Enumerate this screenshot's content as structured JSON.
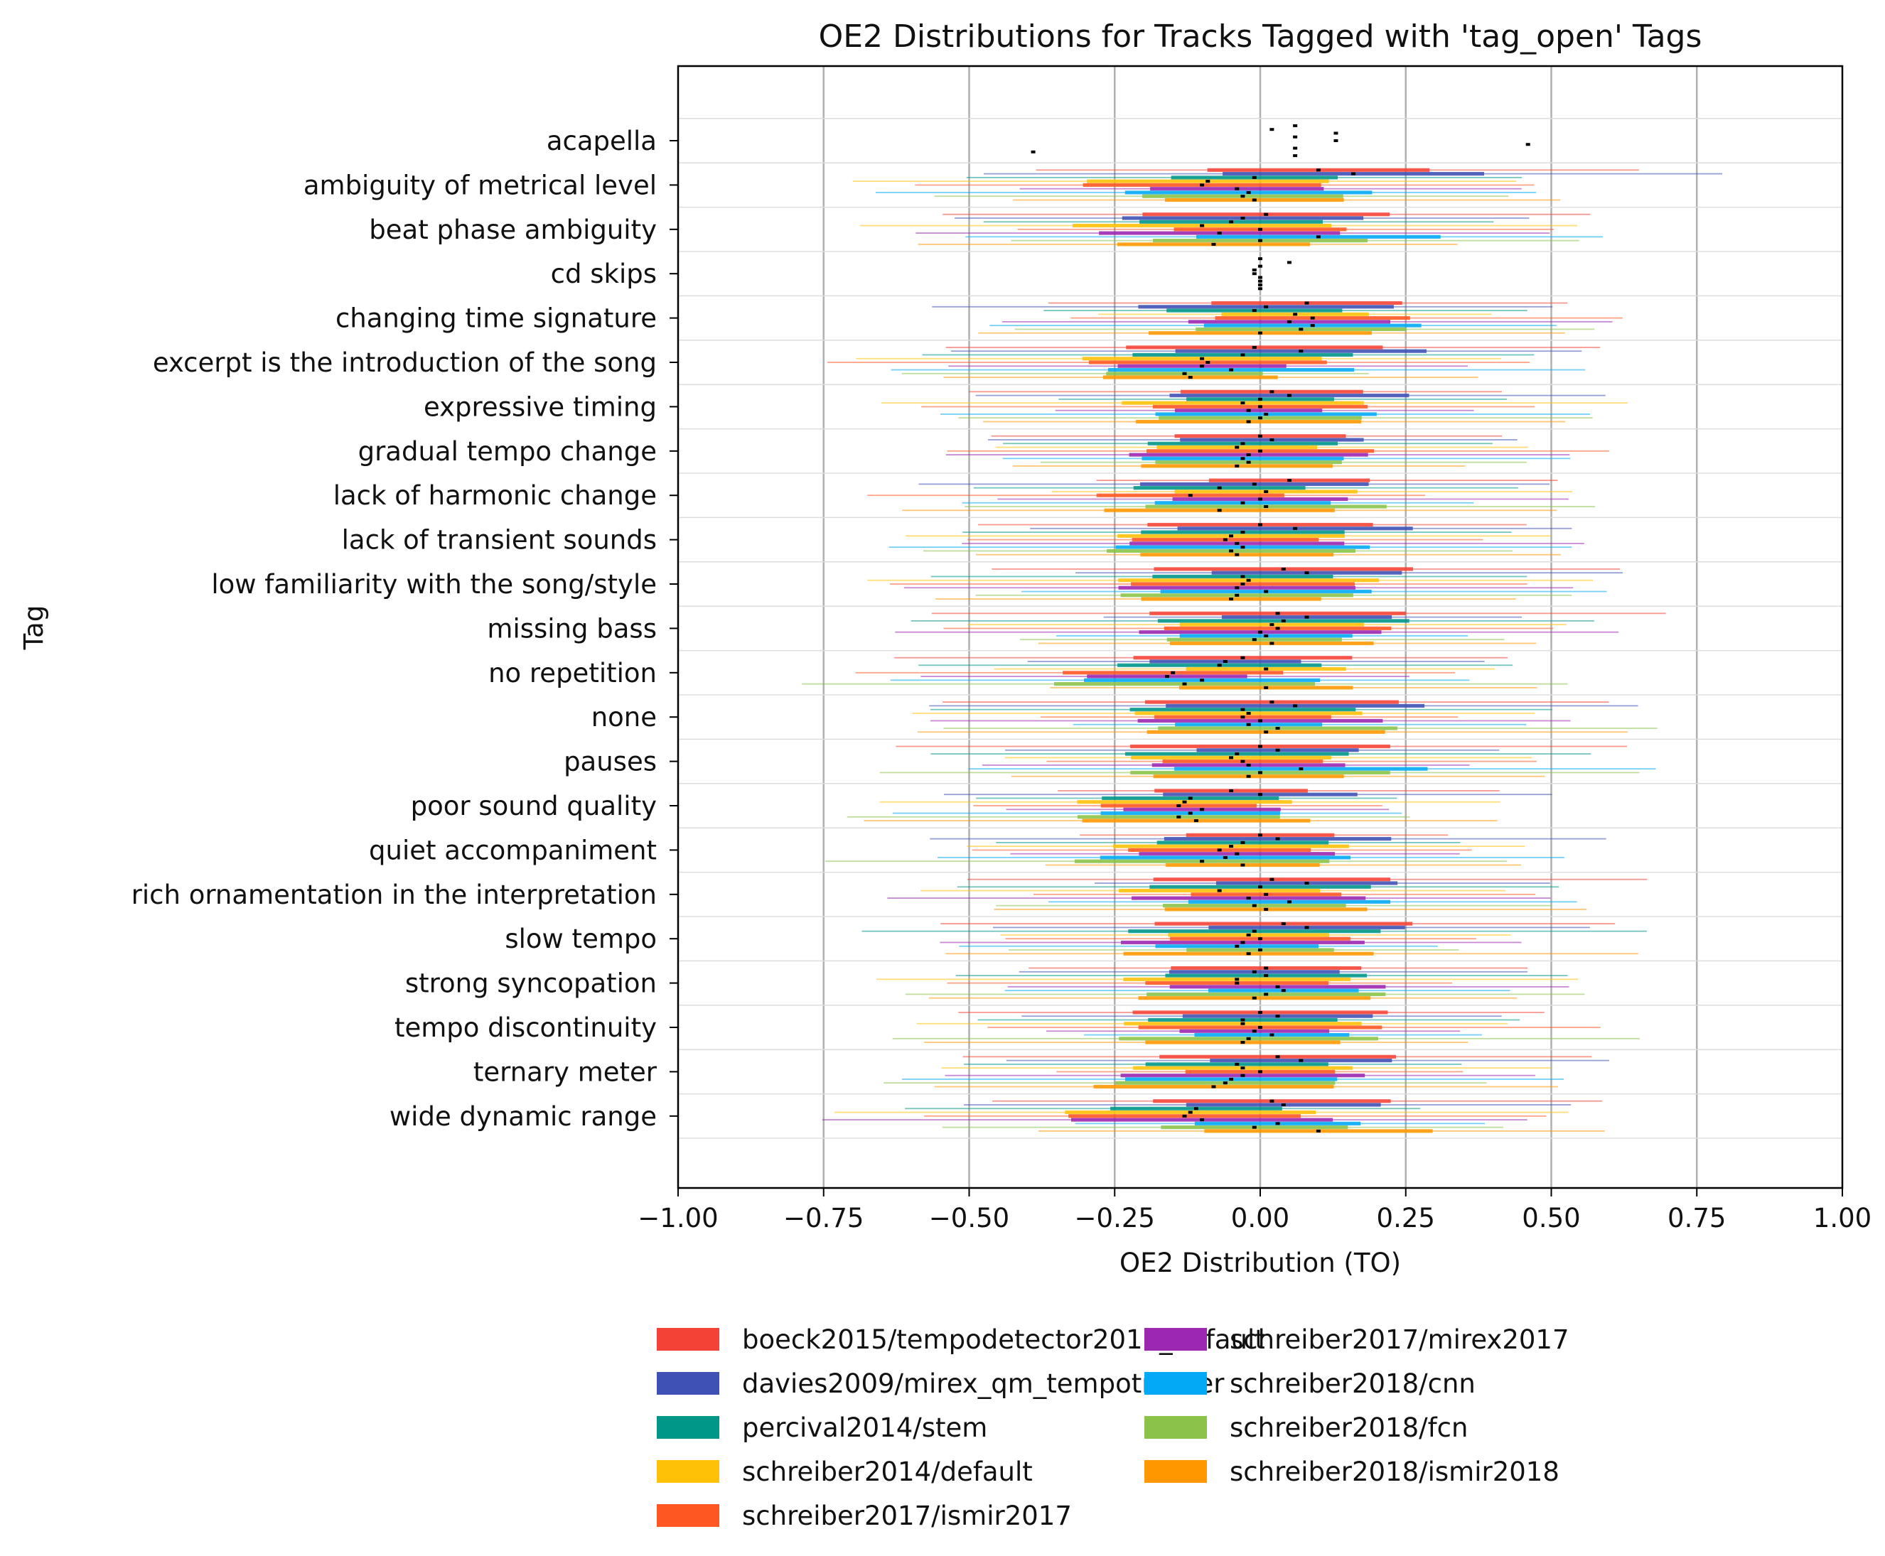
{
  "chart_data": {
    "type": "violin",
    "orientation": "horizontal",
    "title": "OE2 Distributions for Tracks Tagged with 'tag_open' Tags",
    "xlabel": "OE2 Distribution (TO)",
    "ylabel": "Tag",
    "xlim": [
      -1.0,
      1.0
    ],
    "x_ticks": [
      -1.0,
      -0.75,
      -0.5,
      -0.25,
      0.0,
      0.25,
      0.5,
      0.75,
      1.0
    ],
    "x_tick_labels": [
      "−1.00",
      "−0.75",
      "−0.50",
      "−0.25",
      "0.00",
      "0.25",
      "0.50",
      "0.75",
      "1.00"
    ],
    "grid": "vertical",
    "legend_position": "bottom",
    "categories": [
      "acapella",
      "ambiguity of metrical level",
      "beat phase ambiguity",
      "cd skips",
      "changing time signature",
      "excerpt is the introduction of the song",
      "expressive timing",
      "gradual tempo change",
      "lack of harmonic change",
      "lack of transient sounds",
      "low familiarity with the song/style",
      "missing bass",
      "no repetition",
      "none",
      "pauses",
      "poor sound quality",
      "quiet accompaniment",
      "rich ornamentation in the interpretation",
      "slow tempo",
      "strong syncopation",
      "tempo discontinuity",
      "ternary meter",
      "wide dynamic range"
    ],
    "series": [
      {
        "name": "boeck2015/tempodetector2016_default",
        "color": "#f44336"
      },
      {
        "name": "davies2009/mirex_qm_tempotracker",
        "color": "#3f51b5"
      },
      {
        "name": "percival2014/stem",
        "color": "#009688"
      },
      {
        "name": "schreiber2014/default",
        "color": "#ffc107"
      },
      {
        "name": "schreiber2017/ismir2017",
        "color": "#ff5722"
      },
      {
        "name": "schreiber2017/mirex2017",
        "color": "#9c27b0"
      },
      {
        "name": "schreiber2018/cnn",
        "color": "#03a9f4"
      },
      {
        "name": "schreiber2018/fcn",
        "color": "#8bc34a"
      },
      {
        "name": "schreiber2018/ismir2018",
        "color": "#ff9800"
      }
    ],
    "medians": [
      [
        0.06,
        0.02,
        0.13,
        0.06,
        0.13,
        0.46,
        0.06,
        -0.39,
        0.06
      ],
      [
        0.1,
        0.16,
        -0.01,
        -0.09,
        -0.1,
        -0.04,
        -0.02,
        -0.03,
        -0.01
      ],
      [
        0.01,
        -0.03,
        -0.05,
        -0.1,
        0.0,
        -0.07,
        0.1,
        0.0,
        -0.08
      ],
      [
        0.0,
        0.05,
        0.0,
        -0.01,
        -0.01,
        0.0,
        0.0,
        0.0,
        0.0
      ],
      [
        0.08,
        0.01,
        -0.01,
        0.06,
        0.09,
        0.05,
        0.09,
        0.07,
        0.0
      ],
      [
        -0.01,
        0.07,
        -0.03,
        -0.1,
        -0.09,
        -0.1,
        -0.05,
        -0.13,
        -0.12
      ],
      [
        0.02,
        0.05,
        0.0,
        -0.03,
        0.0,
        -0.02,
        0.01,
        0.0,
        -0.02
      ],
      [
        0.0,
        0.02,
        -0.03,
        -0.04,
        0.0,
        -0.02,
        -0.03,
        -0.02,
        -0.04
      ],
      [
        0.05,
        -0.01,
        -0.07,
        0.01,
        -0.12,
        0.0,
        -0.03,
        0.01,
        -0.07
      ],
      [
        0.0,
        0.06,
        -0.03,
        -0.05,
        -0.06,
        -0.04,
        -0.03,
        -0.05,
        -0.04
      ],
      [
        0.04,
        0.08,
        -0.03,
        -0.02,
        -0.03,
        -0.04,
        0.01,
        -0.04,
        -0.05
      ],
      [
        0.03,
        0.08,
        0.04,
        0.02,
        0.03,
        0.0,
        0.01,
        -0.01,
        0.02
      ],
      [
        -0.03,
        -0.06,
        -0.07,
        0.01,
        -0.15,
        -0.16,
        -0.1,
        -0.13,
        0.01
      ],
      [
        0.02,
        0.06,
        -0.03,
        -0.02,
        -0.03,
        0.0,
        -0.02,
        0.03,
        0.01
      ],
      [
        0.0,
        0.03,
        -0.04,
        -0.05,
        -0.03,
        -0.02,
        0.07,
        0.0,
        -0.02
      ],
      [
        -0.05,
        0.0,
        -0.12,
        -0.13,
        -0.14,
        -0.1,
        -0.12,
        -0.14,
        -0.11
      ],
      [
        0.0,
        0.03,
        -0.03,
        -0.05,
        -0.07,
        -0.04,
        -0.06,
        -0.1,
        -0.03
      ],
      [
        0.02,
        0.08,
        0.0,
        -0.07,
        0.01,
        -0.02,
        0.05,
        -0.01,
        0.01
      ],
      [
        0.04,
        0.08,
        -0.01,
        -0.02,
        0.0,
        -0.03,
        -0.04,
        0.0,
        -0.02
      ],
      [
        0.01,
        -0.01,
        0.01,
        -0.04,
        -0.04,
        0.03,
        0.04,
        0.01,
        -0.01
      ],
      [
        0.0,
        0.03,
        -0.03,
        -0.03,
        0.0,
        -0.01,
        0.02,
        -0.02,
        -0.03
      ],
      [
        0.03,
        0.07,
        -0.04,
        -0.03,
        0.0,
        -0.03,
        -0.05,
        -0.06,
        -0.08
      ],
      [
        0.02,
        0.04,
        -0.11,
        -0.12,
        -0.13,
        -0.1,
        0.03,
        -0.01,
        0.1
      ]
    ]
  }
}
